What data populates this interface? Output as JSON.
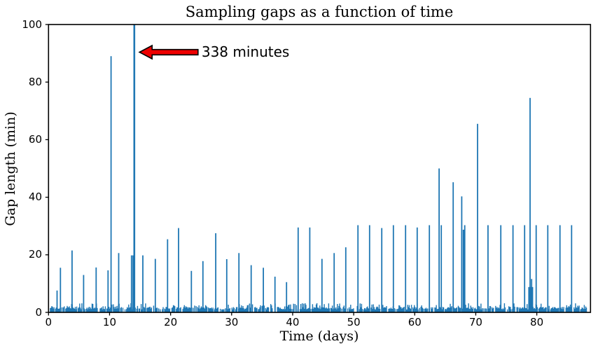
{
  "chart_data": {
    "type": "bar",
    "title": "Sampling gaps as a function of time",
    "xlabel": "Time (days)",
    "ylabel": "Gap length (min)",
    "xlim": [
      0,
      88.8
    ],
    "ylim": [
      0,
      100
    ],
    "xticks": [
      0,
      10,
      20,
      30,
      40,
      50,
      60,
      70,
      80
    ],
    "yticks": [
      0,
      20,
      40,
      60,
      80,
      100
    ],
    "grid": false,
    "legend": null,
    "bar_color": "#1f77b4",
    "axis_color": "#000000",
    "annotation": {
      "text": "338 minutes",
      "arrow_fill": "#ee0000",
      "arrow_edge": "#000000",
      "tip": {
        "day": 14.9,
        "value": 90.4
      },
      "tail": {
        "day": 24.5,
        "value": 90.4
      },
      "points_to": {
        "day": 14.05,
        "value": 338
      }
    },
    "spikes": [
      {
        "day": 1.4,
        "gap_min": 7.6
      },
      {
        "day": 1.95,
        "gap_min": 15.5
      },
      {
        "day": 3.85,
        "gap_min": 21.5
      },
      {
        "day": 5.75,
        "gap_min": 13.0
      },
      {
        "day": 7.8,
        "gap_min": 15.6
      },
      {
        "day": 9.75,
        "gap_min": 14.6
      },
      {
        "day": 10.25,
        "gap_min": 89.0
      },
      {
        "day": 11.5,
        "gap_min": 20.6
      },
      {
        "day": 13.6,
        "gap_min": 19.8
      },
      {
        "day": 13.85,
        "gap_min": 19.8
      },
      {
        "day": 14.05,
        "gap_min": 338,
        "w": 2.6
      },
      {
        "day": 15.45,
        "gap_min": 19.8
      },
      {
        "day": 17.5,
        "gap_min": 18.6
      },
      {
        "day": 19.5,
        "gap_min": 25.4
      },
      {
        "day": 21.3,
        "gap_min": 29.3
      },
      {
        "day": 23.4,
        "gap_min": 14.4
      },
      {
        "day": 25.3,
        "gap_min": 17.8
      },
      {
        "day": 27.4,
        "gap_min": 27.5
      },
      {
        "day": 29.2,
        "gap_min": 18.5
      },
      {
        "day": 31.2,
        "gap_min": 20.6
      },
      {
        "day": 33.2,
        "gap_min": 16.4
      },
      {
        "day": 35.2,
        "gap_min": 15.5
      },
      {
        "day": 37.1,
        "gap_min": 12.4
      },
      {
        "day": 39.0,
        "gap_min": 10.5
      },
      {
        "day": 40.9,
        "gap_min": 29.5
      },
      {
        "day": 42.8,
        "gap_min": 29.5
      },
      {
        "day": 44.8,
        "gap_min": 18.6
      },
      {
        "day": 46.8,
        "gap_min": 20.6
      },
      {
        "day": 48.7,
        "gap_min": 22.6
      },
      {
        "day": 50.7,
        "gap_min": 30.3
      },
      {
        "day": 52.6,
        "gap_min": 30.3
      },
      {
        "day": 54.6,
        "gap_min": 29.3
      },
      {
        "day": 56.5,
        "gap_min": 30.3
      },
      {
        "day": 58.5,
        "gap_min": 30.3
      },
      {
        "day": 60.4,
        "gap_min": 29.5
      },
      {
        "day": 62.4,
        "gap_min": 30.3
      },
      {
        "day": 64.0,
        "gap_min": 50.0
      },
      {
        "day": 64.35,
        "gap_min": 30.3
      },
      {
        "day": 66.3,
        "gap_min": 45.2
      },
      {
        "day": 67.7,
        "gap_min": 40.3
      },
      {
        "day": 68.0,
        "gap_min": 28.7,
        "w": 2.5
      },
      {
        "day": 68.2,
        "gap_min": 30.3
      },
      {
        "day": 70.3,
        "gap_min": 65.5
      },
      {
        "day": 72.0,
        "gap_min": 30.3
      },
      {
        "day": 74.1,
        "gap_min": 30.3
      },
      {
        "day": 76.1,
        "gap_min": 30.3
      },
      {
        "day": 78.0,
        "gap_min": 30.3
      },
      {
        "day": 78.9,
        "gap_min": 74.5
      },
      {
        "day": 79.0,
        "gap_min": 8.8,
        "w": 7
      },
      {
        "day": 79.15,
        "gap_min": 11.6
      },
      {
        "day": 79.9,
        "gap_min": 30.3
      },
      {
        "day": 81.8,
        "gap_min": 30.3
      },
      {
        "day": 83.8,
        "gap_min": 30.3
      },
      {
        "day": 85.7,
        "gap_min": 30.3
      }
    ],
    "noise_floor": {
      "start_day": 0.3,
      "end_day": 88.2,
      "step_day": 0.12,
      "density": 0.8,
      "min_gap": 1.0,
      "max_gap": 3.2,
      "seed": 42
    }
  }
}
